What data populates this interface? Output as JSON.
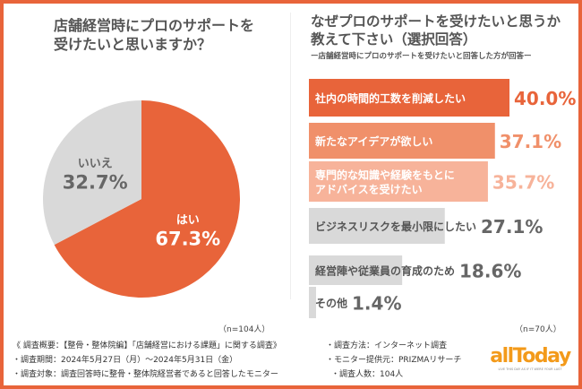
{
  "left": {
    "title_lines": [
      "店舗経営時にプロのサポートを",
      "受けたいと思いますか？"
    ],
    "n": "（n=104人）"
  },
  "right": {
    "title_lines": [
      "なぜプロのサポートを受けたいと思うか",
      "教えて下さい（選択回答）"
    ],
    "subtitle": "ー店舗経営時にプロのサポートを受けたいと回答した方が回答ー",
    "n": "（n=70人）"
  },
  "colors": {
    "accent": "#e8643a",
    "gray": "#d9d9d9"
  },
  "chart_data": [
    {
      "type": "pie",
      "slices": [
        {
          "label": "はい",
          "value": 67.3,
          "value_label": "67.3%",
          "color": "#e8643a"
        },
        {
          "label": "いいえ",
          "value": 32.7,
          "value_label": "32.7%",
          "color": "#d9d9d9"
        }
      ]
    },
    {
      "type": "bar",
      "orientation": "horizontal",
      "unit": "%",
      "categories": [
        [
          "社内の時間的工数を削減したい"
        ],
        [
          "新たなアイデアが欲しい"
        ],
        [
          "専門的な知識や経験をもとに",
          "アドバイスを受けたい"
        ],
        [
          "ビジネスリスクを最小限にしたい"
        ],
        [
          "経営陣や従業員の育成のため"
        ],
        [
          "その他"
        ]
      ],
      "values": [
        40.0,
        37.1,
        35.7,
        27.1,
        18.6,
        1.4
      ],
      "value_labels": [
        "40.0%",
        "37.1%",
        "35.7%",
        "27.1%",
        "18.6%",
        "1.4%"
      ],
      "colors": [
        "#e8643a",
        "#f0906a",
        "#f7b39a",
        "#d9d9d9",
        "#d9d9d9",
        "#d9d9d9"
      ]
    }
  ],
  "notes_left": [
    "《 調査概要：【整骨・整体院編】「店舗経営における課題」に関する調査》",
    "・調査期間：2024年5月27日（月）～2024年5月31日（金）",
    "・調査対象：調査回答時に整骨・整体院経営者であると回答したモニター"
  ],
  "notes_right": [
    "・調査方法：インターネット調査",
    "・モニター提供元：PRIZMAリサーチ",
    "・調査人数：104人"
  ],
  "logo": {
    "word": "allToday",
    "tagline": "LIVE THIS DAY AS IF IT WERE YOUR LAST"
  }
}
